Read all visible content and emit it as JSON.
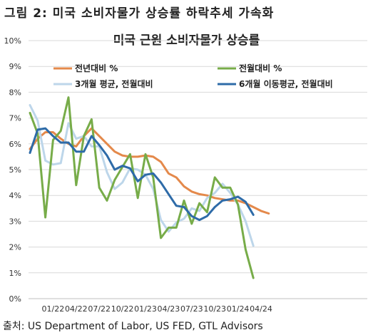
{
  "figure_title": "그림 2: 미국 소비자물가 상승률 하락추세 가속화",
  "source": "출처: US Department of Labor, US FED, GTL Advisors",
  "colors": {
    "yoy": "#E4894B",
    "mom": "#77AC49",
    "avg3": "#BDD6EA",
    "avg6": "#2E6BA8"
  },
  "chart_data": {
    "type": "line",
    "title": "미국 근원 소비자물가 상승률",
    "xlabel": "",
    "ylabel": "",
    "ylim": [
      0,
      10
    ],
    "yticks": [
      "0%",
      "1%",
      "2%",
      "3%",
      "4%",
      "5%",
      "6%",
      "7%",
      "8%",
      "9%",
      "10%"
    ],
    "xticks": [
      "01/22",
      "04/22",
      "07/22",
      "10/22",
      "01/23",
      "04/23",
      "07/23",
      "10/23",
      "01/24",
      "04/24"
    ],
    "x": [
      "10/21",
      "11/21",
      "12/21",
      "01/22",
      "02/22",
      "03/22",
      "04/22",
      "05/22",
      "06/22",
      "07/22",
      "08/22",
      "09/22",
      "10/22",
      "11/22",
      "12/22",
      "01/23",
      "02/23",
      "03/23",
      "04/23",
      "05/23",
      "06/23",
      "07/23",
      "08/23",
      "09/23",
      "10/23",
      "11/23",
      "12/23",
      "01/24",
      "02/24",
      "03/24",
      "04/24",
      "05/24",
      "06/24"
    ],
    "legend_position": "top",
    "series": [
      {
        "name": "전년대비 %",
        "color_key": "yoy",
        "values": [
          5.8,
          6.2,
          6.45,
          6.45,
          6.2,
          6.0,
          5.9,
          6.3,
          6.6,
          6.3,
          6.0,
          5.7,
          5.55,
          5.5,
          5.5,
          5.55,
          5.5,
          5.3,
          4.85,
          4.7,
          4.35,
          4.15,
          4.05,
          4.0,
          3.9,
          3.85,
          3.8,
          3.8,
          3.7,
          3.55,
          3.4,
          3.3,
          null
        ],
        "_note": "x positions follow the x list"
      },
      {
        "name": "전월대비 %",
        "color_key": "mom",
        "values": [
          7.2,
          6.4,
          3.15,
          6.15,
          6.5,
          7.8,
          4.4,
          6.3,
          6.95,
          4.3,
          3.8,
          4.6,
          5.1,
          5.6,
          3.9,
          5.6,
          4.7,
          2.35,
          2.75,
          2.75,
          3.8,
          2.9,
          3.7,
          3.35,
          4.7,
          4.3,
          4.3,
          3.65,
          1.9,
          0.8,
          null,
          null,
          null
        ]
      },
      {
        "name": "3개월 평균, 전월대비",
        "color_key": "avg3",
        "values": [
          7.5,
          6.9,
          5.35,
          5.2,
          5.25,
          6.8,
          6.2,
          6.3,
          5.9,
          5.9,
          4.9,
          4.25,
          4.5,
          5.05,
          5.0,
          4.8,
          4.25,
          3.05,
          2.6,
          2.95,
          3.1,
          3.5,
          3.4,
          3.9,
          4.1,
          4.45,
          4.1,
          3.65,
          3.0,
          2.05,
          null,
          null,
          null
        ]
      },
      {
        "name": "6개월 이동평균, 전월대비",
        "color_key": "avg6",
        "values": [
          5.65,
          6.55,
          6.6,
          6.3,
          6.05,
          6.05,
          5.7,
          5.7,
          6.3,
          5.95,
          5.55,
          5.0,
          5.15,
          5.05,
          4.55,
          4.8,
          4.85,
          4.5,
          4.05,
          3.6,
          3.55,
          3.2,
          3.05,
          3.2,
          3.55,
          3.8,
          3.85,
          3.95,
          3.75,
          3.25,
          null,
          null,
          null
        ]
      }
    ]
  }
}
